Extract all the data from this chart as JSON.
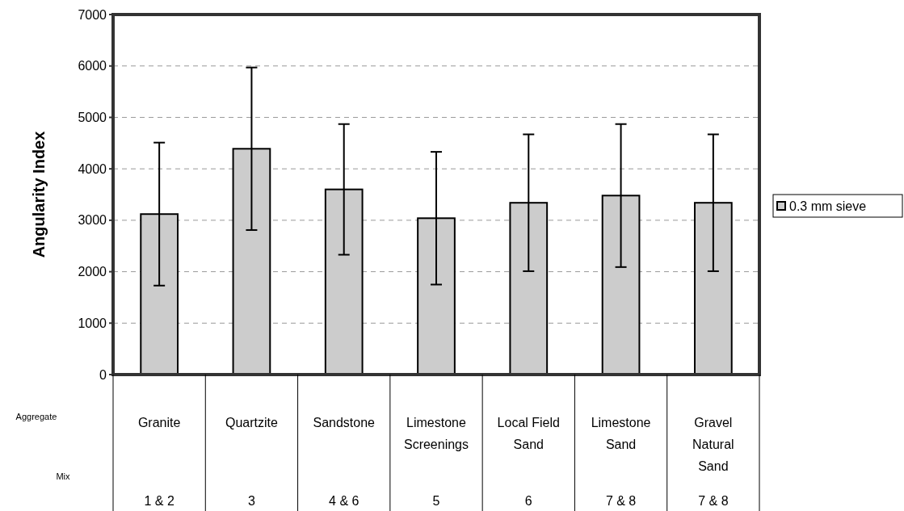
{
  "chart_data": {
    "type": "bar",
    "ylabel": "Angularity Index",
    "categories": [
      "Granite",
      "Quartzite",
      "Sandstone",
      "Limestone Screenings",
      "Local Field Sand",
      "Limestone Sand",
      "Gravel Natural Sand"
    ],
    "series": [
      {
        "name": "0.3 mm sieve",
        "color": "#cccccc",
        "values": [
          3120,
          4390,
          3600,
          3040,
          3340,
          3480,
          3340
        ],
        "errors": [
          1390,
          1580,
          1270,
          1290,
          1330,
          1390,
          1330
        ]
      }
    ],
    "ylim": [
      0,
      7000
    ],
    "yticks": [
      0,
      1000,
      2000,
      3000,
      4000,
      5000,
      6000,
      7000
    ],
    "grid": "y",
    "legend": "right",
    "annotations": [
      "Aggregate",
      "Mix",
      "1 & 2",
      "3",
      "4 & 6",
      "5",
      "6",
      "7 & 8",
      "7 & 8"
    ]
  }
}
